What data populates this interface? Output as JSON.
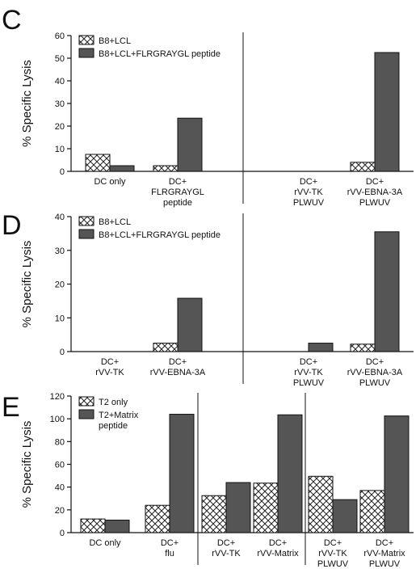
{
  "chart_data": [
    {
      "type": "bar",
      "panel": "C",
      "ylabel": "% Specific Lysis",
      "ylim": [
        0,
        60
      ],
      "yticks": [
        0,
        10,
        20,
        30,
        40,
        50,
        60
      ],
      "categories": [
        {
          "lines": [
            "DC only"
          ]
        },
        {
          "lines": [
            "DC+",
            "FLRGRAYGL",
            "peptide"
          ]
        },
        {
          "lines": [
            "DC+",
            "rVV-TK",
            "PLWUV"
          ]
        },
        {
          "lines": [
            "DC+",
            "rVV-EBNA-3A",
            "PLWUV"
          ]
        }
      ],
      "series": [
        {
          "name": "B8+LCL",
          "style": "hatch",
          "values": [
            7.5,
            2.5,
            null,
            4
          ]
        },
        {
          "name": "B8+LCL+FLRGRAYGL peptide",
          "style": "solid",
          "values": [
            2.5,
            23.5,
            null,
            52.5
          ]
        }
      ],
      "separators_after": [
        2
      ],
      "legend": "top-left"
    },
    {
      "type": "bar",
      "panel": "D",
      "ylabel": "% Specific Lysis",
      "ylim": [
        0,
        40
      ],
      "yticks": [
        0,
        10,
        20,
        30,
        40
      ],
      "categories": [
        {
          "lines": [
            "DC+",
            "rVV-TK"
          ]
        },
        {
          "lines": [
            "DC+",
            "rVV-EBNA-3A"
          ]
        },
        {
          "lines": [
            "DC+",
            "rVV-TK",
            "PLWUV"
          ]
        },
        {
          "lines": [
            "DC+",
            "rVV-EBNA-3A",
            "PLWUV"
          ]
        }
      ],
      "series": [
        {
          "name": "B8+LCL",
          "style": "hatch",
          "values": [
            null,
            2.5,
            null,
            2.2
          ]
        },
        {
          "name": "B8+LCL+FLRGRAYGL peptide",
          "style": "solid",
          "values": [
            null,
            15.8,
            2.5,
            35.5
          ]
        }
      ],
      "separators_after": [
        2
      ],
      "legend": "top-left"
    },
    {
      "type": "bar",
      "panel": "E",
      "ylabel": "% Specific Lysis",
      "ylim": [
        0,
        120
      ],
      "yticks": [
        0,
        20,
        40,
        60,
        80,
        100,
        120
      ],
      "categories": [
        {
          "lines": [
            "DC only"
          ]
        },
        {
          "lines": [
            "DC+",
            "flu"
          ]
        },
        {
          "lines": [
            "DC+",
            "rVV-TK"
          ]
        },
        {
          "lines": [
            "DC+",
            "rVV-Matrix"
          ]
        },
        {
          "lines": [
            "DC+",
            "rVV-TK",
            "PLWUV"
          ]
        },
        {
          "lines": [
            "DC+",
            "rVV-Matrix",
            "PLWUV"
          ]
        }
      ],
      "series": [
        {
          "name": "T2 only",
          "style": "hatch",
          "values": [
            12,
            24,
            32.5,
            43.5,
            49.5,
            37
          ]
        },
        {
          "name": "T2+Matrix peptide",
          "name_lines": [
            "T2+Matrix",
            "peptide"
          ],
          "style": "solid",
          "values": [
            11,
            104,
            44,
            103.5,
            29,
            102.5
          ]
        }
      ],
      "separators_after": [
        2,
        4
      ],
      "legend": "top-left"
    }
  ]
}
